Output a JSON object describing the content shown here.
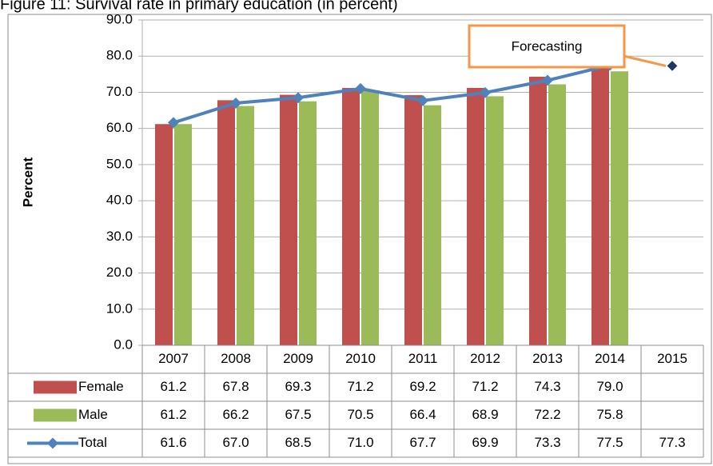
{
  "chart_data": {
    "type": "bar-line-table",
    "title": "Figure 11: Survival rate in primary education (in percent)",
    "y_label": "Percent",
    "categories": [
      "2007",
      "2008",
      "2009",
      "2010",
      "2011",
      "2012",
      "2013",
      "2014",
      "2015"
    ],
    "series": [
      {
        "name": "Female",
        "type": "bar",
        "color": "#c0504d",
        "values": [
          61.2,
          67.8,
          69.3,
          71.2,
          69.2,
          71.2,
          74.3,
          79.0,
          null
        ],
        "value_labels": [
          "61.2",
          "67.8",
          "69.3",
          "71.2",
          "69.2",
          "71.2",
          "74.3",
          "79.0",
          null
        ]
      },
      {
        "name": "Male",
        "type": "bar",
        "color": "#9bbb59",
        "values": [
          61.2,
          66.2,
          67.5,
          70.5,
          66.4,
          68.9,
          72.2,
          75.8,
          null
        ],
        "value_labels": [
          "61.2",
          "66.2",
          "67.5",
          "70.5",
          "66.4",
          "68.9",
          "72.2",
          "75.8",
          null
        ]
      },
      {
        "name": "Total",
        "type": "line",
        "color": "#4f81bd",
        "forecast_color": "#1f3864",
        "values": [
          61.6,
          67.0,
          68.5,
          71.0,
          67.7,
          69.9,
          73.3,
          77.5,
          77.3
        ],
        "value_labels": [
          "61.6",
          "67.0",
          "68.5",
          "71.0",
          "67.7",
          "69.9",
          "73.3",
          "77.5",
          "77.3"
        ]
      }
    ],
    "annotation": {
      "text": "Forecasting",
      "color": "#f79646"
    },
    "ylim": [
      0,
      90
    ],
    "yticks": [
      {
        "value": 0,
        "label": "0.0"
      },
      {
        "value": 10,
        "label": "10.0"
      },
      {
        "value": 20,
        "label": "20.0"
      },
      {
        "value": 30,
        "label": "30.0"
      },
      {
        "value": 40,
        "label": "40.0"
      },
      {
        "value": 50,
        "label": "50.0"
      },
      {
        "value": 60,
        "label": "60.0"
      },
      {
        "value": 70,
        "label": "70.0"
      },
      {
        "value": 80,
        "label": "80.0"
      },
      {
        "value": 90,
        "label": "90.0"
      }
    ],
    "grid": true
  }
}
